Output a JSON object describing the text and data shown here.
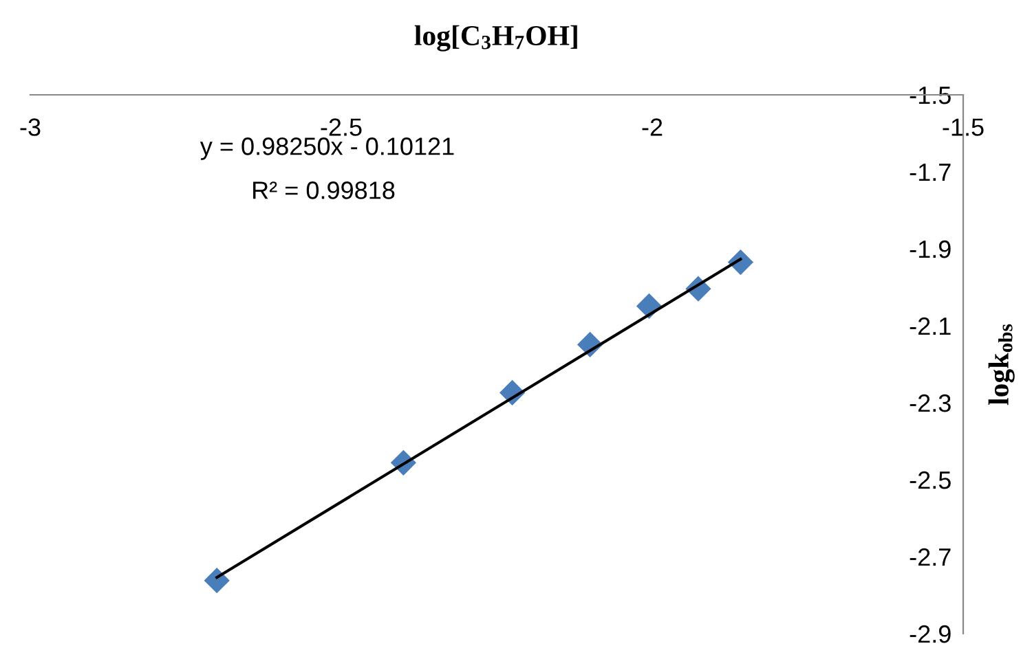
{
  "chart_data": {
    "type": "scatter",
    "xlabel": "log[C$_{3}$H$_{7}$OH]",
    "ylabel": "logk$_{obs}$",
    "annotations": [
      "y = 0.98250x - 0.10121",
      "R² = 0.99818"
    ],
    "series": [
      {
        "color": "#4a7ebb",
        "marker": "diamond",
        "x": [
          -2.7,
          -2.4,
          -2.225,
          -2.1,
          -2.005,
          -1.926,
          -1.858
        ],
        "values": [
          -2.762,
          -2.456,
          -2.274,
          -2.149,
          -2.049,
          -2.004,
          -1.935
        ]
      },
      {
        "type": "line",
        "color": "#000000",
        "marker": "none",
        "line_style": "solid",
        "x": [
          -2.7,
          -1.858
        ],
        "values": [
          -2.754,
          -1.927
        ]
      }
    ],
    "xlim": [
      -3,
      -1.5
    ],
    "ylim": [
      -2.9,
      -1.5
    ],
    "xticks": [
      -3,
      -2.5,
      -2,
      -1.5
    ],
    "yticks": [
      -2.9,
      -2.7,
      -2.5,
      -2.3,
      -2.1,
      -1.9,
      -1.7,
      -1.5
    ],
    "grid": false,
    "legend": false
  }
}
